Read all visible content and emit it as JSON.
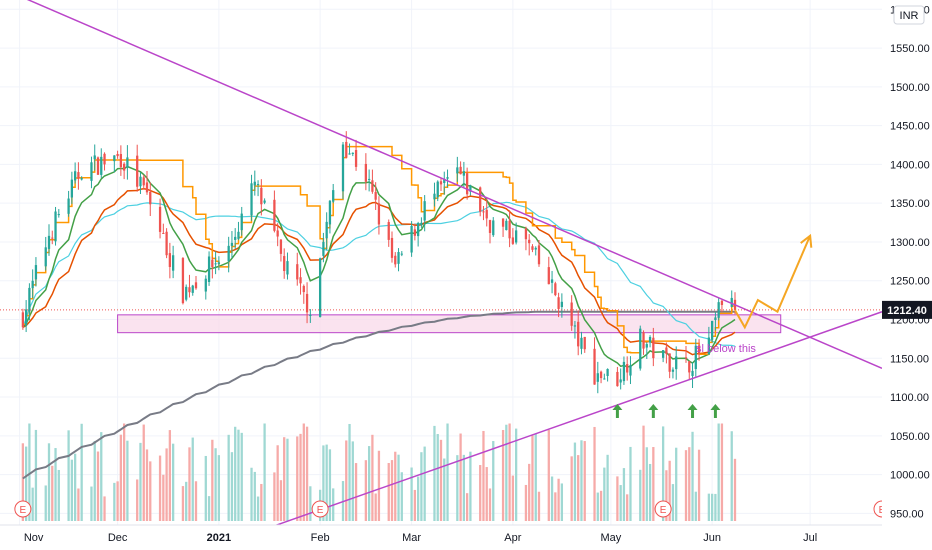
{
  "currency_label": "INR",
  "last_price_label": "1212.40",
  "note_text": "sl below this",
  "earnings_marker_label": "E",
  "colors": {
    "up": "#26a69a",
    "down": "#ef5350",
    "trendline": "#ba45c9",
    "projection": "#f5a623",
    "zone_fill": "#f8d7e8",
    "ma200": "#787b86",
    "ma50": "#4dd0e1",
    "ema_short": "#43a047",
    "ema_mid": "#e65100",
    "step_blue": "#2196f3",
    "step_orange": "#ff9800",
    "arrow": "#43a047"
  },
  "chart_data": {
    "type": "candlestick",
    "x_tick_labels": [
      "Nov",
      "Dec",
      "2021",
      "Feb",
      "Mar",
      "Apr",
      "May",
      "Jun",
      "Jul"
    ],
    "y_tick_labels": [
      "1600.00",
      "1550.00",
      "1500.00",
      "1450.00",
      "1400.00",
      "1350.00",
      "1300.00",
      "1250.00",
      "1200.00",
      "1150.00",
      "1100.00",
      "1050.00",
      "1000.00",
      "950.00"
    ],
    "ylim": [
      935,
      1612
    ],
    "last_price": 1212.4,
    "grid": true,
    "key_points": [
      {
        "date": "2020-11-02",
        "close": 1205
      },
      {
        "date": "2020-11-10",
        "close": 1310
      },
      {
        "date": "2020-11-20",
        "close": 1395
      },
      {
        "date": "2020-12-02",
        "close": 1410
      },
      {
        "date": "2020-12-10",
        "close": 1360
      },
      {
        "date": "2020-12-21",
        "close": 1235
      },
      {
        "date": "2021-01-04",
        "close": 1290
      },
      {
        "date": "2021-01-12",
        "close": 1375
      },
      {
        "date": "2021-01-21",
        "close": 1270
      },
      {
        "date": "2021-01-29",
        "close": 1215
      },
      {
        "date": "2021-02-08",
        "close": 1430
      },
      {
        "date": "2021-02-15",
        "close": 1385
      },
      {
        "date": "2021-02-24",
        "close": 1265
      },
      {
        "date": "2021-03-05",
        "close": 1345
      },
      {
        "date": "2021-03-15",
        "close": 1390
      },
      {
        "date": "2021-03-25",
        "close": 1325
      },
      {
        "date": "2021-04-05",
        "close": 1300
      },
      {
        "date": "2021-04-15",
        "close": 1225
      },
      {
        "date": "2021-04-26",
        "close": 1130
      },
      {
        "date": "2021-05-03",
        "close": 1125
      },
      {
        "date": "2021-05-10",
        "close": 1175
      },
      {
        "date": "2021-05-17",
        "close": 1150
      },
      {
        "date": "2021-05-24",
        "close": 1140
      },
      {
        "date": "2021-05-31",
        "close": 1170
      },
      {
        "date": "2021-06-04",
        "close": 1225
      },
      {
        "date": "2021-06-08",
        "close": 1212.4
      }
    ],
    "support_zone": {
      "from_date": "2020-12-01",
      "to_date": "2021-06-22",
      "low": 1183,
      "high": 1206
    },
    "trendlines": [
      {
        "name": "descending-resistance",
        "from": {
          "date": "2020-10-26",
          "price": 1628
        },
        "to": {
          "date": "2021-07-23",
          "price": 1137
        }
      },
      {
        "name": "ascending-support",
        "from": {
          "date": "2020-12-16",
          "price": 885
        },
        "to": {
          "date": "2021-07-23",
          "price": 1210
        }
      }
    ],
    "projection": [
      {
        "date": "2021-06-08",
        "price": 1212
      },
      {
        "date": "2021-06-11",
        "price": 1190
      },
      {
        "date": "2021-06-15",
        "price": 1225
      },
      {
        "date": "2021-06-21",
        "price": 1210
      },
      {
        "date": "2021-07-01",
        "price": 1308
      }
    ],
    "up_arrows_dates": [
      "2021-05-03",
      "2021-05-14",
      "2021-05-26",
      "2021-06-02"
    ],
    "earnings_dates": [
      "2020-11-02",
      "2021-02-01",
      "2021-05-17",
      "2021-07-23"
    ]
  }
}
